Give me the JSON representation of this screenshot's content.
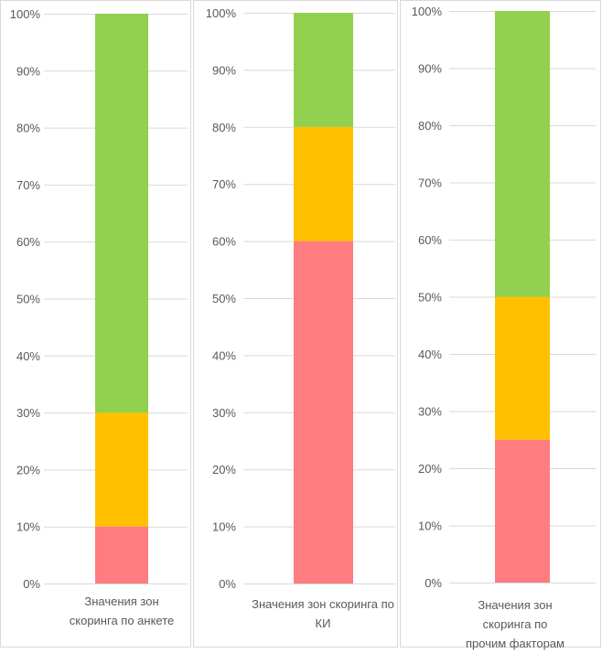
{
  "colors": {
    "red": "#FF7C80",
    "orange": "#FFC000",
    "green": "#92D050",
    "grid": "#d9d9d9",
    "text": "#595959"
  },
  "chart_data": [
    {
      "type": "bar",
      "stacked": true,
      "normalized": true,
      "categories": [
        "Значения зон скоринга по анкете"
      ],
      "series": [
        {
          "color": "#FF7C80",
          "values": [
            10
          ]
        },
        {
          "color": "#FFC000",
          "values": [
            20
          ]
        },
        {
          "color": "#92D050",
          "values": [
            70
          ]
        }
      ],
      "ylim": [
        0,
        100
      ],
      "yticks": [
        "0%",
        "10%",
        "20%",
        "30%",
        "40%",
        "50%",
        "60%",
        "70%",
        "80%",
        "90%",
        "100%"
      ],
      "grid": true
    },
    {
      "type": "bar",
      "stacked": true,
      "normalized": true,
      "categories": [
        "Значения зон скоринга по КИ"
      ],
      "series": [
        {
          "color": "#FF7C80",
          "values": [
            60
          ]
        },
        {
          "color": "#FFC000",
          "values": [
            20
          ]
        },
        {
          "color": "#92D050",
          "values": [
            20
          ]
        }
      ],
      "ylim": [
        0,
        100
      ],
      "yticks": [
        "0%",
        "10%",
        "20%",
        "30%",
        "40%",
        "50%",
        "60%",
        "70%",
        "80%",
        "90%",
        "100%"
      ],
      "grid": true
    },
    {
      "type": "bar",
      "stacked": true,
      "normalized": true,
      "categories": [
        "Значения зон скоринга по прочим факторам"
      ],
      "series": [
        {
          "color": "#FF7C80",
          "values": [
            25
          ]
        },
        {
          "color": "#FFC000",
          "values": [
            25
          ]
        },
        {
          "color": "#92D050",
          "values": [
            50
          ]
        }
      ],
      "ylim": [
        0,
        100
      ],
      "yticks": [
        "0%",
        "10%",
        "20%",
        "30%",
        "40%",
        "50%",
        "60%",
        "70%",
        "80%",
        "90%",
        "100%"
      ],
      "grid": true
    }
  ]
}
